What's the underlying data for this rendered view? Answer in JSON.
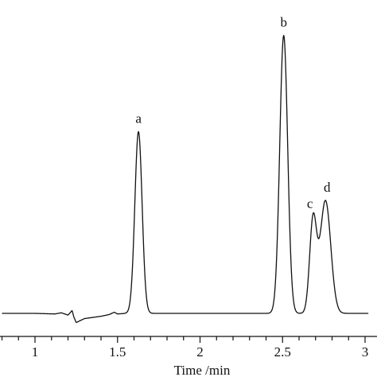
{
  "chart_data": {
    "type": "line",
    "title": "",
    "xlabel": "Time /min",
    "ylabel": "",
    "xlim": [
      0.8,
      3.02
    ],
    "ylim": [
      -0.05,
      1.0
    ],
    "grid": false,
    "x_ticks": [
      {
        "value": 1,
        "label": "1"
      },
      {
        "value": 1.5,
        "label": "1.5"
      },
      {
        "value": 2,
        "label": "2"
      },
      {
        "value": 2.5,
        "label": "2.5"
      },
      {
        "value": 3,
        "label": "3"
      }
    ],
    "baseline": 0,
    "disturbance": [
      {
        "x": 1.0,
        "y": 0.0
      },
      {
        "x": 1.12,
        "y": -0.002
      },
      {
        "x": 1.16,
        "y": 0.002
      },
      {
        "x": 1.2,
        "y": -0.006
      },
      {
        "x": 1.225,
        "y": 0.01
      },
      {
        "x": 1.235,
        "y": -0.012
      },
      {
        "x": 1.25,
        "y": -0.032
      },
      {
        "x": 1.27,
        "y": -0.026
      },
      {
        "x": 1.3,
        "y": -0.018
      },
      {
        "x": 1.35,
        "y": -0.014
      },
      {
        "x": 1.4,
        "y": -0.01
      },
      {
        "x": 1.45,
        "y": -0.004
      },
      {
        "x": 1.48,
        "y": 0.004
      },
      {
        "x": 1.5,
        "y": -0.002
      },
      {
        "x": 1.55,
        "y": 0.0
      }
    ],
    "peaks": [
      {
        "label": "a",
        "x": 1.627,
        "height": 0.628,
        "width": 0.022
      },
      {
        "label": "b",
        "x": 2.507,
        "height": 0.96,
        "width": 0.024
      },
      {
        "label": "c",
        "x": 2.685,
        "height": 0.32,
        "width": 0.021
      },
      {
        "label": "d",
        "x": 2.76,
        "height": 0.39,
        "width": 0.032
      }
    ]
  }
}
